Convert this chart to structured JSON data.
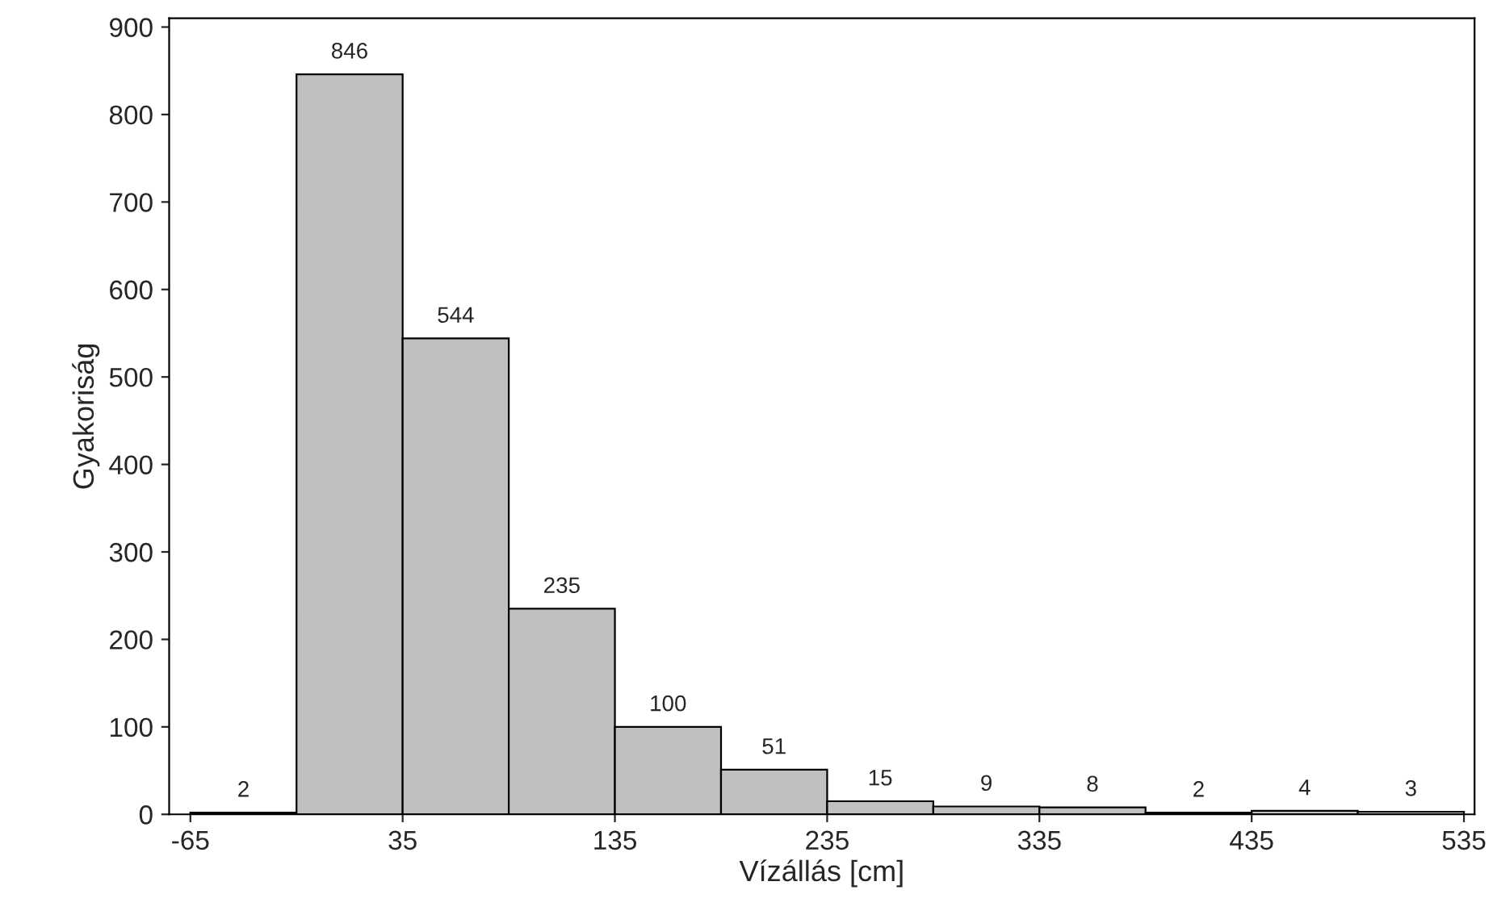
{
  "chart_data": {
    "type": "histogram",
    "xlabel": "Vízállás [cm]",
    "ylabel": "Gyakoriság",
    "bins": [
      -65,
      -15,
      35,
      85,
      135,
      185,
      235,
      285,
      335,
      385,
      435,
      485,
      535
    ],
    "values": [
      2,
      846,
      544,
      235,
      100,
      51,
      15,
      9,
      8,
      2,
      4,
      3
    ],
    "color": "#c0c0c0",
    "xlim": [
      -75,
      540
    ],
    "xticks": [
      -65,
      35,
      135,
      235,
      335,
      435,
      535
    ],
    "ylim": [
      0,
      910
    ],
    "yticks": [
      0,
      100,
      200,
      300,
      400,
      500,
      600,
      700,
      800,
      900
    ],
    "data_labels": true,
    "grid": false,
    "legend": false
  }
}
